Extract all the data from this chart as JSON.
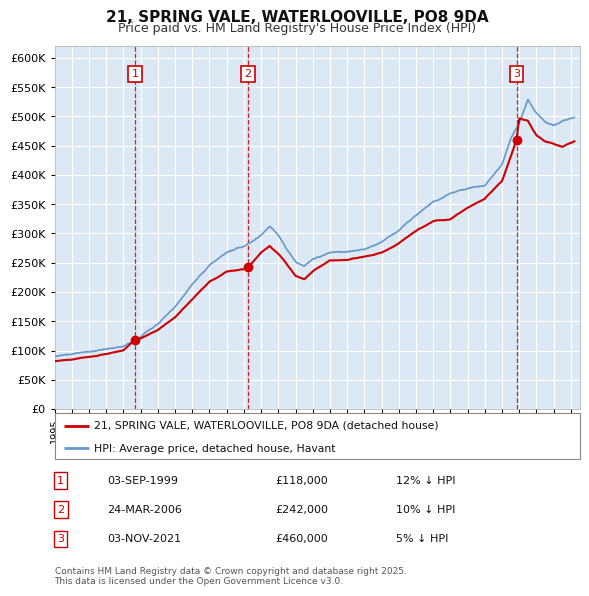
{
  "title": "21, SPRING VALE, WATERLOOVILLE, PO8 9DA",
  "subtitle": "Price paid vs. HM Land Registry's House Price Index (HPI)",
  "legend_line1": "21, SPRING VALE, WATERLOOVILLE, PO8 9DA (detached house)",
  "legend_line2": "HPI: Average price, detached house, Havant",
  "footer": "Contains HM Land Registry data © Crown copyright and database right 2025.\nThis data is licensed under the Open Government Licence v3.0.",
  "purchases": [
    {
      "num": 1,
      "date": "03-SEP-1999",
      "price": 118000,
      "hpi_pct": "12% ↓ HPI",
      "x_year": 1999.67
    },
    {
      "num": 2,
      "date": "24-MAR-2006",
      "price": 242000,
      "hpi_pct": "10% ↓ HPI",
      "x_year": 2006.23
    },
    {
      "num": 3,
      "date": "03-NOV-2021",
      "price": 460000,
      "hpi_pct": "5% ↓ HPI",
      "x_year": 2021.84
    }
  ],
  "ylim": [
    0,
    620000
  ],
  "yticks": [
    0,
    50000,
    100000,
    150000,
    200000,
    250000,
    300000,
    350000,
    400000,
    450000,
    500000,
    550000,
    600000
  ],
  "xlim_start": 1995.0,
  "xlim_end": 2025.5,
  "plot_bg_color": "#dce9f5",
  "grid_color": "#ffffff",
  "red_line_color": "#cc0000",
  "blue_line_color": "#6699cc",
  "dot_color": "#cc0000",
  "vline_color": "#cc0000",
  "box_edge_color": "#cc0000",
  "hpi_keypoints": [
    [
      1995.0,
      90000
    ],
    [
      1996.0,
      93000
    ],
    [
      1997.0,
      97000
    ],
    [
      1998.0,
      100000
    ],
    [
      1999.0,
      105000
    ],
    [
      2000.0,
      122000
    ],
    [
      2001.0,
      143000
    ],
    [
      2002.0,
      175000
    ],
    [
      2003.0,
      215000
    ],
    [
      2004.0,
      248000
    ],
    [
      2005.0,
      268000
    ],
    [
      2006.0,
      278000
    ],
    [
      2007.0,
      298000
    ],
    [
      2007.5,
      312000
    ],
    [
      2008.0,
      296000
    ],
    [
      2008.5,
      272000
    ],
    [
      2009.0,
      252000
    ],
    [
      2009.5,
      245000
    ],
    [
      2010.0,
      258000
    ],
    [
      2011.0,
      272000
    ],
    [
      2012.0,
      272000
    ],
    [
      2013.0,
      278000
    ],
    [
      2014.0,
      290000
    ],
    [
      2015.0,
      310000
    ],
    [
      2016.0,
      335000
    ],
    [
      2017.0,
      360000
    ],
    [
      2018.0,
      375000
    ],
    [
      2019.0,
      383000
    ],
    [
      2020.0,
      388000
    ],
    [
      2021.0,
      425000
    ],
    [
      2021.5,
      468000
    ],
    [
      2022.0,
      495000
    ],
    [
      2022.5,
      535000
    ],
    [
      2023.0,
      512000
    ],
    [
      2023.5,
      497000
    ],
    [
      2024.0,
      492000
    ],
    [
      2024.5,
      500000
    ],
    [
      2025.2,
      506000
    ]
  ],
  "red_keypoints": [
    [
      1995.0,
      82000
    ],
    [
      1996.0,
      85000
    ],
    [
      1997.0,
      89000
    ],
    [
      1998.0,
      93000
    ],
    [
      1999.0,
      100000
    ],
    [
      1999.67,
      118000
    ],
    [
      2000.0,
      120000
    ],
    [
      2001.0,
      135000
    ],
    [
      2002.0,
      158000
    ],
    [
      2003.0,
      188000
    ],
    [
      2004.0,
      218000
    ],
    [
      2005.0,
      235000
    ],
    [
      2006.0,
      239000
    ],
    [
      2006.23,
      242000
    ],
    [
      2007.0,
      268000
    ],
    [
      2007.5,
      280000
    ],
    [
      2008.0,
      266000
    ],
    [
      2008.5,
      248000
    ],
    [
      2009.0,
      228000
    ],
    [
      2009.5,
      222000
    ],
    [
      2010.0,
      236000
    ],
    [
      2011.0,
      254000
    ],
    [
      2012.0,
      256000
    ],
    [
      2013.0,
      260000
    ],
    [
      2014.0,
      267000
    ],
    [
      2015.0,
      282000
    ],
    [
      2016.0,
      303000
    ],
    [
      2017.0,
      318000
    ],
    [
      2018.0,
      322000
    ],
    [
      2019.0,
      342000
    ],
    [
      2020.0,
      358000
    ],
    [
      2021.0,
      388000
    ],
    [
      2021.84,
      460000
    ],
    [
      2022.0,
      496000
    ],
    [
      2022.5,
      492000
    ],
    [
      2023.0,
      467000
    ],
    [
      2023.5,
      457000
    ],
    [
      2024.0,
      452000
    ],
    [
      2024.5,
      447000
    ],
    [
      2025.2,
      457000
    ]
  ]
}
